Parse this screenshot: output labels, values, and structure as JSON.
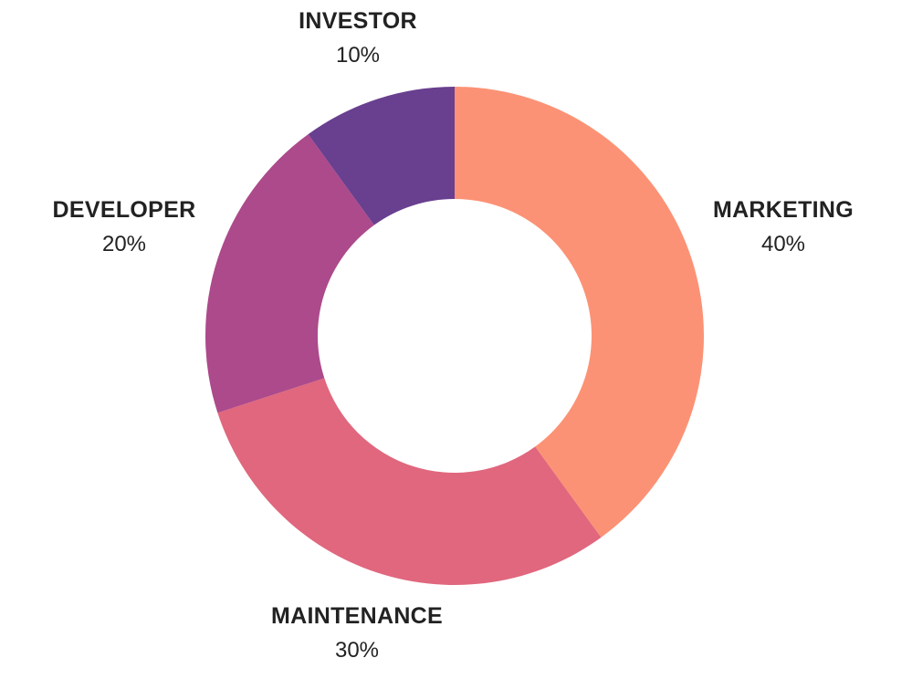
{
  "chart_data": {
    "type": "pie",
    "donut": true,
    "slices": [
      {
        "label": "MARKETING",
        "value": 40,
        "value_label": "40%",
        "color": "#FC9275"
      },
      {
        "label": "MAINTENANCE",
        "value": 30,
        "value_label": "30%",
        "color": "#E0677E"
      },
      {
        "label": "DEVELOPER",
        "value": 20,
        "value_label": "20%",
        "color": "#AC4A8B"
      },
      {
        "label": "INVESTOR",
        "value": 10,
        "value_label": "10%",
        "color": "#693F8F"
      }
    ]
  }
}
